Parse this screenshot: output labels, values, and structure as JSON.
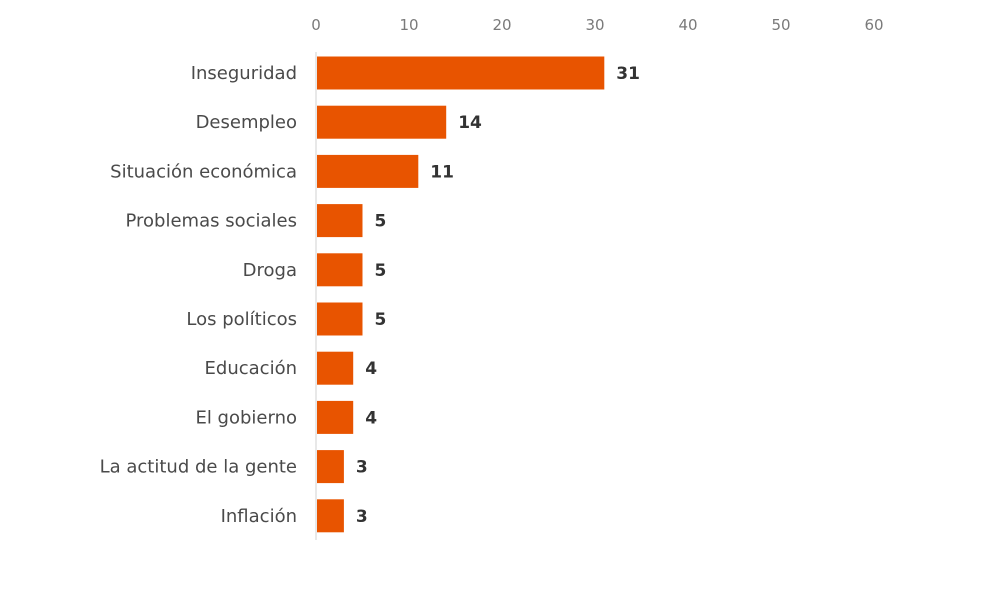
{
  "chart_data": {
    "type": "bar",
    "orientation": "horizontal",
    "categories": [
      "Inseguridad",
      "Desempleo",
      "Situación económica",
      "Problemas sociales",
      "Droga",
      "Los políticos",
      "Educación",
      "El gobierno",
      "La actitud de la gente",
      "Inflación"
    ],
    "values": [
      31,
      14,
      11,
      5,
      5,
      5,
      4,
      4,
      3,
      3
    ],
    "data_labels": [
      "31",
      "14",
      "11",
      "5",
      "5",
      "5",
      "4",
      "4",
      "3",
      "3"
    ],
    "xlim": [
      0,
      60
    ],
    "x_ticks": [
      0,
      10,
      20,
      30,
      40,
      50,
      60
    ],
    "x_tick_labels": [
      "0",
      "10",
      "20",
      "30",
      "40",
      "50",
      "60"
    ],
    "x_axis_position": "top",
    "grid": false,
    "legend": "none",
    "bar_color": "#E85400"
  }
}
